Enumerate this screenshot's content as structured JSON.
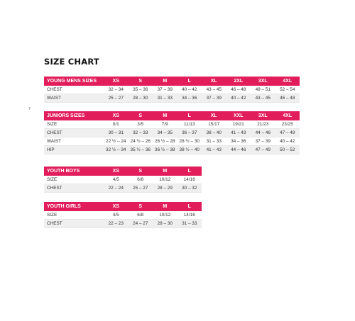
{
  "title": "SIZE CHART",
  "stray_mark": "7",
  "tables": [
    {
      "header": "YOUNG MENS SIZES",
      "columns": [
        "XS",
        "S",
        "M",
        "L",
        "XL",
        "2XL",
        "3XL",
        "4XL"
      ],
      "rows": [
        {
          "label": "CHEST",
          "values": [
            "32 – 34",
            "35 – 36",
            "37 – 39",
            "40 – 42",
            "43 – 45",
            "46 – 48",
            "49 – 51",
            "52 – 54"
          ]
        },
        {
          "label": "WAIST",
          "values": [
            "25 – 27",
            "28 – 30",
            "31 – 33",
            "34 – 36",
            "37 – 39",
            "40 – 42",
            "43 – 45",
            "46 – 48"
          ]
        }
      ]
    },
    {
      "header": "JUNIORS SIZES",
      "columns": [
        "XS",
        "S",
        "M",
        "L",
        "XL",
        "XXL",
        "3XL",
        "4XL"
      ],
      "rows": [
        {
          "label": "SIZE",
          "values": [
            "0/1",
            "3/5",
            "7/9",
            "11/13",
            "15/17",
            "19/21",
            "21/23",
            "23/25"
          ]
        },
        {
          "label": "CHEST",
          "values": [
            "30 – 31",
            "32 – 33",
            "34 – 35",
            "36 – 37",
            "38 – 40",
            "41 – 43",
            "44 – 46",
            "47 – 49"
          ]
        },
        {
          "label": "WAIST",
          "values": [
            "22 ½ – 24",
            "24 ½ – 26",
            "26 ½ – 28",
            "28 ½ – 30",
            "31 – 33",
            "34 – 36",
            "37 – 39",
            "40 – 42"
          ]
        },
        {
          "label": "HIP",
          "values": [
            "32 ½ – 34",
            "35 ½ – 36",
            "36 ½ – 38",
            "38 ½ – 40",
            "41 – 43",
            "44 – 46",
            "47 – 49",
            "50 – 52"
          ]
        }
      ]
    },
    {
      "header": "YOUTH BOYS",
      "columns": [
        "XS",
        "S",
        "M",
        "L"
      ],
      "rows": [
        {
          "label": "SIZE",
          "values": [
            "4/5",
            "6/8",
            "10/12",
            "14/16"
          ]
        },
        {
          "label": "CHEST",
          "values": [
            "22 – 24",
            "25 – 27",
            "28 – 29",
            "30 – 32"
          ]
        }
      ]
    },
    {
      "header": "YOUTH GIRLS",
      "columns": [
        "XS",
        "S",
        "M",
        "L"
      ],
      "rows": [
        {
          "label": "SIZE",
          "values": [
            "4/5",
            "6/8",
            "10/12",
            "14/16"
          ]
        },
        {
          "label": "CHEST",
          "values": [
            "22 – 23",
            "24 – 27",
            "28 – 30",
            "31 – 33"
          ]
        }
      ]
    }
  ],
  "colors": {
    "header_bg": "#e21d5b",
    "header_text": "#ffffff",
    "alt_row": "#efefef"
  }
}
